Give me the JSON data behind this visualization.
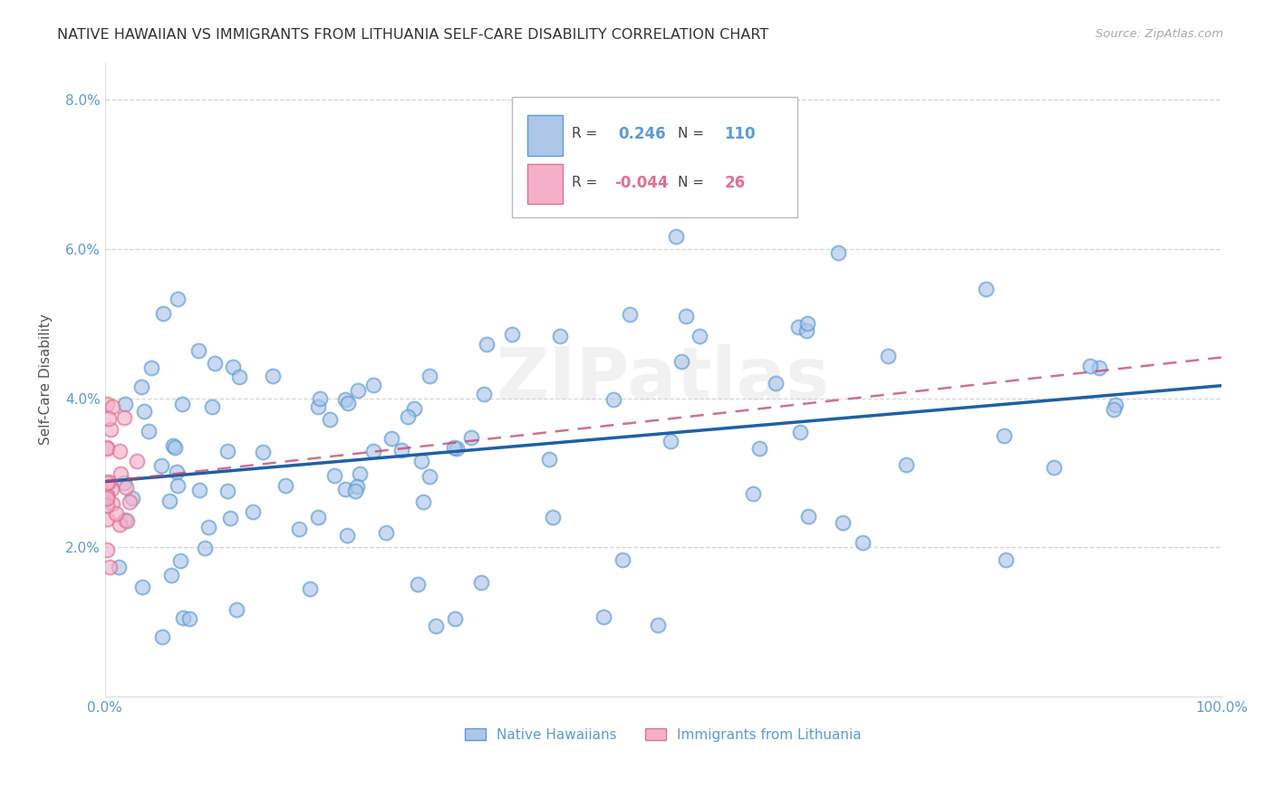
{
  "title": "NATIVE HAWAIIAN VS IMMIGRANTS FROM LITHUANIA SELF-CARE DISABILITY CORRELATION CHART",
  "source": "Source: ZipAtlas.com",
  "ylabel": "Self-Care Disability",
  "xlim": [
    0.0,
    1.0
  ],
  "ylim": [
    0.0,
    0.085
  ],
  "blue_R": 0.246,
  "blue_N": 110,
  "pink_R": -0.044,
  "pink_N": 26,
  "blue_face_color": "#aec6e8",
  "blue_edge_color": "#5b9bd5",
  "blue_line_color": "#1f5fa6",
  "pink_face_color": "#f4b0c8",
  "pink_edge_color": "#e07090",
  "pink_line_color": "#c04070",
  "legend_label_blue": "Native Hawaiians",
  "legend_label_pink": "Immigrants from Lithuania",
  "watermark": "ZIPatlas",
  "background_color": "#ffffff",
  "grid_color": "#cccccc",
  "title_color": "#333333",
  "axis_tick_color": "#5b9bd5",
  "ylabel_color": "#555555",
  "source_color": "#aaaaaa",
  "box_edge_color": "#bbbbbb"
}
